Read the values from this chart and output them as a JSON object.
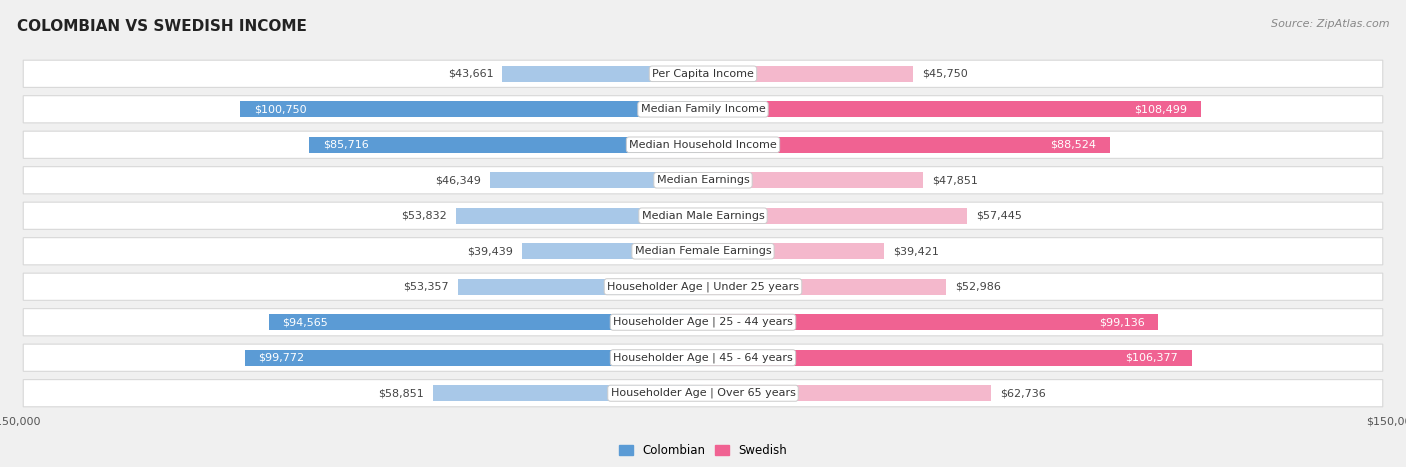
{
  "title": "COLOMBIAN VS SWEDISH INCOME",
  "source": "Source: ZipAtlas.com",
  "categories": [
    "Per Capita Income",
    "Median Family Income",
    "Median Household Income",
    "Median Earnings",
    "Median Male Earnings",
    "Median Female Earnings",
    "Householder Age | Under 25 years",
    "Householder Age | 25 - 44 years",
    "Householder Age | 45 - 64 years",
    "Householder Age | Over 65 years"
  ],
  "colombian_values": [
    43661,
    100750,
    85716,
    46349,
    53832,
    39439,
    53357,
    94565,
    99772,
    58851
  ],
  "swedish_values": [
    45750,
    108499,
    88524,
    47851,
    57445,
    39421,
    52986,
    99136,
    106377,
    62736
  ],
  "colombian_labels": [
    "$43,661",
    "$100,750",
    "$85,716",
    "$46,349",
    "$53,832",
    "$39,439",
    "$53,357",
    "$94,565",
    "$99,772",
    "$58,851"
  ],
  "swedish_labels": [
    "$45,750",
    "$108,499",
    "$88,524",
    "$47,851",
    "$57,445",
    "$39,421",
    "$52,986",
    "$99,136",
    "$106,377",
    "$62,736"
  ],
  "max_value": 150000,
  "colombian_color_light": "#a8c8e8",
  "colombian_color_dark": "#5b9bd5",
  "swedish_color_light": "#f4b8cc",
  "swedish_color_dark": "#f06292",
  "threshold": 70000,
  "background_color": "#f0f0f0",
  "row_bg_color": "#ffffff",
  "row_border_color": "#d8d8d8",
  "label_bg_color": "#ffffff",
  "label_border_color": "#cccccc",
  "title_fontsize": 11,
  "source_fontsize": 8,
  "bar_label_fontsize": 8,
  "category_fontsize": 8,
  "legend_fontsize": 8.5,
  "axis_label_fontsize": 8
}
